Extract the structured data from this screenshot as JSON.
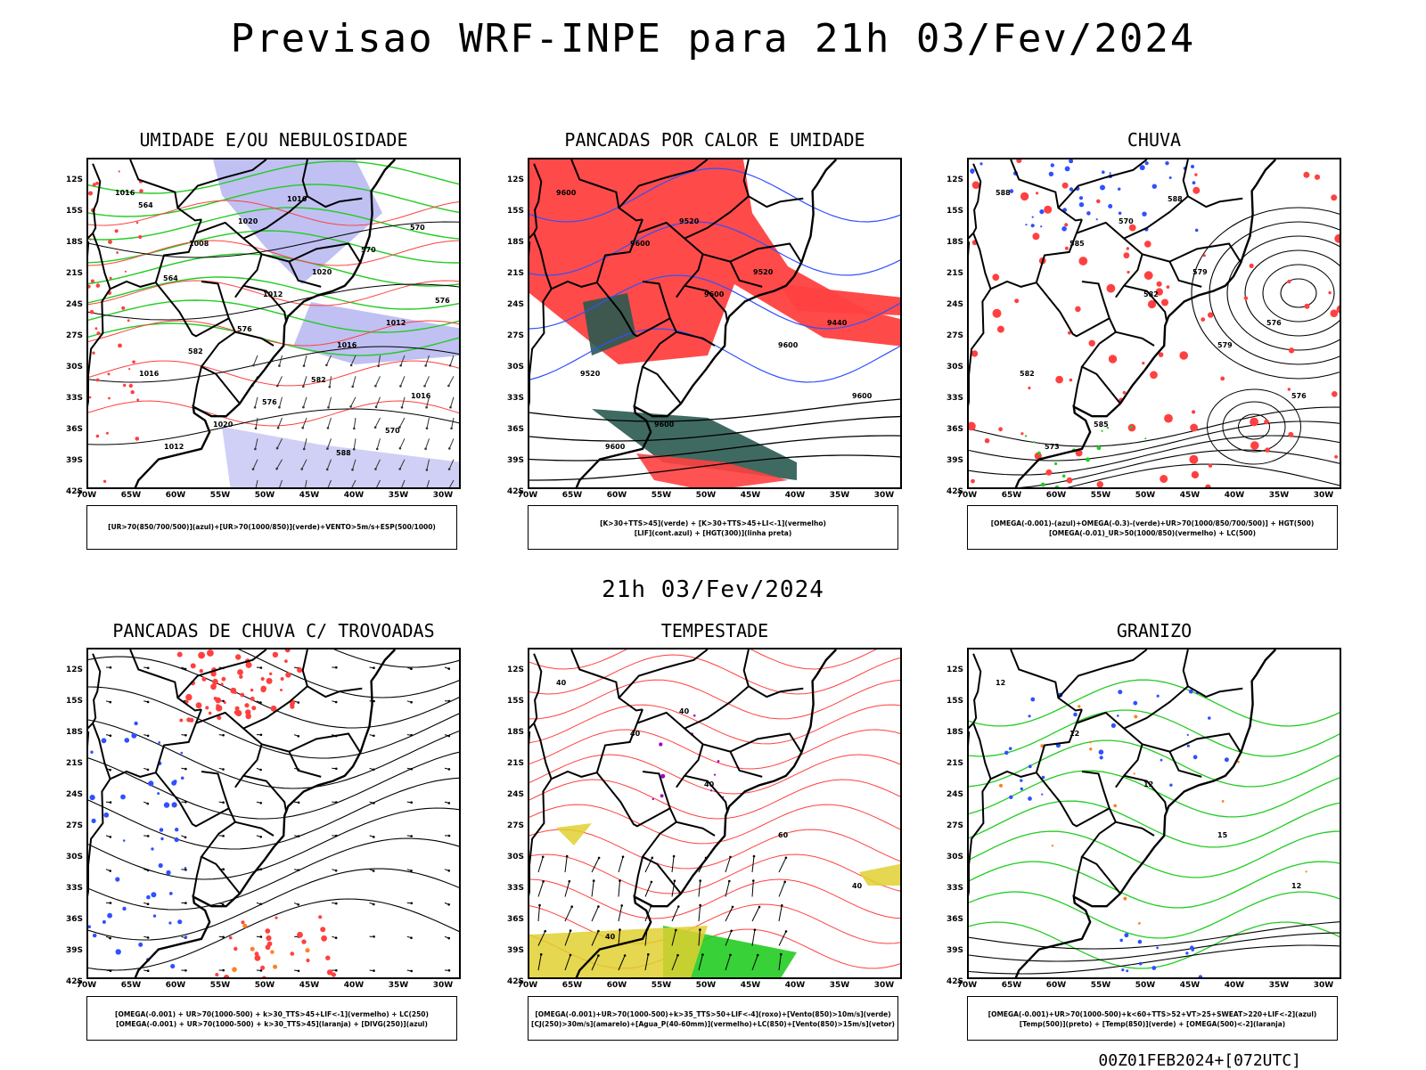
{
  "title": "Previsao WRF-INPE  para 21h 03/Fev/2024",
  "subtitle": "21h 03/Fev/2024",
  "footer": "00Z01FEB2024+[072UTC]",
  "lat_labels": [
    "12S",
    "15S",
    "18S",
    "21S",
    "24S",
    "27S",
    "30S",
    "33S",
    "36S",
    "39S",
    "42S"
  ],
  "lon_labels": [
    "70W",
    "65W",
    "60W",
    "55W",
    "50W",
    "45W",
    "40W",
    "35W",
    "30W"
  ],
  "colors": {
    "red": "#ff4040",
    "green": "#22cc22",
    "blue": "#3050ff",
    "lavender": "#b0b0f0",
    "darkgreen": "#2a5a50",
    "yellow": "#e0d030",
    "orange": "#ff8020",
    "purple": "#a000c0"
  },
  "chart_data": [
    {
      "type": "map",
      "title": "UMIDADE E/OU NEBULOSIDADE",
      "legend": [
        "[UR>70(850/700/500)](azul)+[UR>70(1000/850)](verde)+VENTO>5m/s+ESP(500/1000)"
      ],
      "contour_labels": [
        "1016",
        "1008",
        "1012",
        "1016",
        "1016",
        "1012",
        "1020",
        "1020",
        "1012",
        "1016",
        "1020",
        "1016",
        "570",
        "576",
        "582",
        "576",
        "588",
        "570",
        "564",
        "576",
        "582",
        "570",
        "564"
      ]
    },
    {
      "type": "map",
      "title": "PANCADAS POR CALOR E UMIDADE",
      "legend": [
        "[K>30+TTS>45](verde) + [K>30+TTS>45+LI<-1](vermelho)",
        "[LIF](cont.azul) + [HGT(300)](linha preta)"
      ],
      "contour_labels": [
        "9600",
        "9600",
        "9600",
        "9600",
        "9600",
        "9600",
        "9520",
        "9520",
        "9440",
        "9520",
        "9600"
      ]
    },
    {
      "type": "map",
      "title": "CHUVA",
      "legend": [
        "[OMEGA(-0.001)-(azul)+OMEGA(-0.3)-(verde)+UR>70(1000/850/700/500)] + HGT(500)",
        "[OMEGA(-0.01)_UR>50(1000/850)(vermelho) + LC(500)"
      ],
      "contour_labels": [
        "588",
        "585",
        "582",
        "579",
        "576",
        "573",
        "570",
        "579",
        "576",
        "582",
        "585",
        "588"
      ]
    },
    {
      "type": "map",
      "title": "PANCADAS DE CHUVA C/ TROVOADAS",
      "legend": [
        "[OMEGA(-0.001) + UR>70(1000-500) + k>30_TTS>45+LIF<-1](vermelho) + LC(250)",
        "[OMEGA(-0.001) + UR>70(1000-500) + k>30_TTS>45](laranja) + [DIVG(250)](azul)"
      ],
      "contour_labels": []
    },
    {
      "type": "map",
      "title": "TEMPESTADE",
      "legend": [
        "[OMEGA(-0.001)+UR>70(1000-500)+k>35_TTS>50+LIF<-4](roxo)+[Vento(850)>10m/s](verde)",
        "[CJ(250)>30m/s](amarelo)+[Agua_P(40-60mm)](vermelho)+LC(850)+[Vento(850)>15m/s](vetor)"
      ],
      "contour_labels": [
        "40",
        "40",
        "40",
        "60",
        "40",
        "40",
        "40"
      ]
    },
    {
      "type": "map",
      "title": "GRANIZO",
      "legend": [
        "[OMEGA(-0.001)+UR>70(1000-500)+k<60+TTS>52+VT>25+SWEAT>220+LIF<-2](azul)",
        "[Temp(500)](preto) + [Temp(850)](verde) + [OMEGA(500)<-2](laranja)"
      ],
      "contour_labels": [
        "12",
        "12",
        "12",
        "15",
        "12"
      ]
    }
  ]
}
